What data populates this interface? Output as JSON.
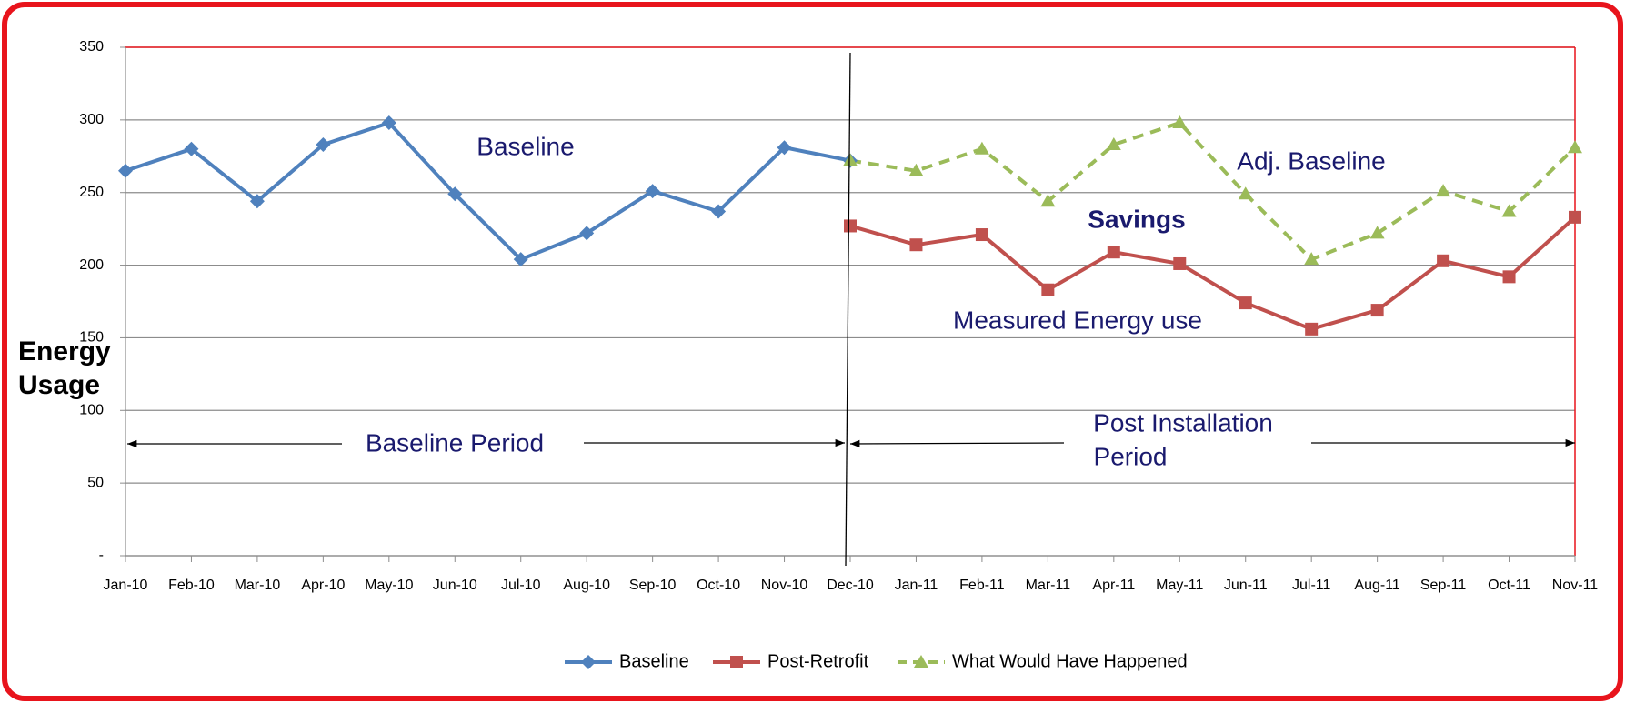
{
  "chart_data": {
    "type": "line",
    "ylabel_lines": [
      "Energy",
      "Usage"
    ],
    "categories": [
      "Jan-10",
      "Feb-10",
      "Mar-10",
      "Apr-10",
      "May-10",
      "Jun-10",
      "Jul-10",
      "Aug-10",
      "Sep-10",
      "Oct-10",
      "Nov-10",
      "Dec-10",
      "Jan-11",
      "Feb-11",
      "Mar-11",
      "Apr-11",
      "May-11",
      "Jun-11",
      "Jul-11",
      "Aug-11",
      "Sep-11",
      "Oct-11",
      "Nov-11"
    ],
    "series": [
      {
        "name": "Baseline",
        "color": "#4f81bd",
        "marker": "diamond",
        "dashed": false,
        "values": [
          265,
          280,
          244,
          283,
          298,
          249,
          204,
          222,
          251,
          237,
          281,
          272,
          null,
          null,
          null,
          null,
          null,
          null,
          null,
          null,
          null,
          null,
          null
        ]
      },
      {
        "name": "Post-Retrofit",
        "color": "#c0504d",
        "marker": "square",
        "dashed": false,
        "values": [
          null,
          null,
          null,
          null,
          null,
          null,
          null,
          null,
          null,
          null,
          null,
          227,
          214,
          221,
          183,
          209,
          201,
          174,
          156,
          169,
          203,
          192,
          233
        ]
      },
      {
        "name": "What Would Have Happened",
        "color": "#9bbb59",
        "marker": "triangle",
        "dashed": true,
        "values": [
          null,
          null,
          null,
          null,
          null,
          null,
          null,
          null,
          null,
          null,
          null,
          272,
          265,
          280,
          244,
          283,
          298,
          249,
          204,
          222,
          251,
          237,
          281
        ]
      }
    ],
    "ylim": [
      0,
      350
    ],
    "yticks": [
      {
        "value": 0,
        "label": "-"
      },
      50,
      100,
      150,
      200,
      250,
      300,
      350
    ],
    "grid": true,
    "legend": "bottom",
    "annotations": [
      {
        "lines": [
          "Baseline"
        ]
      },
      {
        "lines": [
          "Adj. Baseline"
        ]
      },
      {
        "lines": [
          "Savings"
        ]
      },
      {
        "lines": [
          "Measured Energy use"
        ]
      },
      {
        "lines": [
          "Baseline Period"
        ]
      },
      {
        "lines": [
          "Post Installation",
          "Period"
        ]
      }
    ]
  }
}
